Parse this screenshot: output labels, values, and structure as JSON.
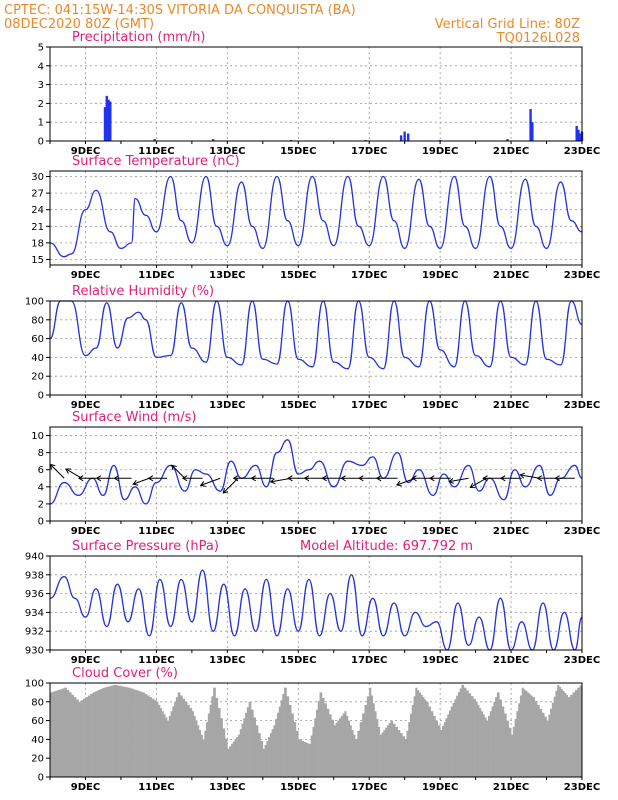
{
  "header": {
    "line1": "CPTEC:   041:15W-14:30S   VITORIA DA CONQUISTA (BA)",
    "line2": "08DEC2020 80Z (GMT)",
    "grid_note": "Vertical Grid Line: 80Z",
    "code": "TQ0126L028",
    "model_altitude_label": "Model Altitude: 697.792  m"
  },
  "colors": {
    "header": "#e8892b",
    "title": "#e0207a",
    "line": "#2233dd",
    "bar": "#2233ee",
    "cloud": "#a6a6a6"
  },
  "x_ticks": [
    "9DEC",
    "11DEC",
    "13DEC",
    "15DEC",
    "17DEC",
    "19DEC",
    "21DEC",
    "23DEC"
  ],
  "chart_data": [
    {
      "id": "precip",
      "type": "bar",
      "title": "Precipitation  (mm/h)",
      "ylim": [
        0,
        5
      ],
      "yticks": [
        0,
        1,
        2,
        3,
        4,
        5
      ],
      "x_day_start": 8.0,
      "x_day_end": 23.0,
      "x": [
        9.55,
        9.6,
        9.65,
        9.7,
        10.95,
        12.6,
        14.8,
        16.9,
        17.9,
        18.0,
        18.1,
        19.0,
        20.9,
        21.55,
        21.6,
        22.85,
        22.9,
        22.95,
        23.0
      ],
      "values": [
        1.8,
        2.4,
        2.2,
        2.1,
        0.1,
        0.1,
        0.05,
        0.05,
        0.3,
        0.5,
        0.4,
        0.05,
        0.1,
        1.7,
        1.0,
        0.8,
        0.6,
        0.4,
        0.5
      ]
    },
    {
      "id": "temp",
      "type": "line",
      "title": "Surface Temperature  (nC)",
      "ylim": [
        14,
        31
      ],
      "yticks": [
        15,
        18,
        21,
        24,
        27,
        30
      ],
      "x_day_start": 8.0,
      "x_day_end": 23.0,
      "x": [
        8.0,
        8.4,
        8.6,
        9.0,
        9.3,
        9.7,
        10.0,
        10.3,
        10.4,
        10.7,
        11.0,
        11.4,
        11.7,
        12.0,
        12.4,
        12.7,
        13.0,
        13.4,
        13.7,
        14.0,
        14.4,
        14.7,
        15.0,
        15.4,
        15.7,
        16.0,
        16.4,
        16.7,
        17.0,
        17.4,
        17.7,
        18.0,
        18.4,
        18.7,
        19.0,
        19.4,
        19.7,
        20.0,
        20.4,
        20.7,
        21.0,
        21.4,
        21.7,
        22.0,
        22.4,
        22.7,
        23.0
      ],
      "values": [
        18,
        15.5,
        16,
        24,
        27.5,
        20,
        17,
        18,
        26,
        23,
        20,
        30,
        22,
        18,
        30,
        21,
        17.5,
        29,
        21,
        17,
        30,
        22,
        17.5,
        30,
        22,
        17.5,
        30,
        21,
        17.5,
        30,
        22,
        17,
        29.5,
        21,
        17,
        30,
        21,
        17,
        30,
        21,
        17,
        29.5,
        21,
        17,
        29,
        22,
        20
      ]
    },
    {
      "id": "rh",
      "type": "line",
      "title": "Relative Humidity  (%)",
      "ylim": [
        0,
        100
      ],
      "yticks": [
        0,
        20,
        40,
        60,
        80,
        100
      ],
      "x_day_start": 8.0,
      "x_day_end": 23.0,
      "x": [
        8.0,
        8.3,
        8.6,
        9.0,
        9.3,
        9.6,
        9.9,
        10.2,
        10.5,
        10.7,
        11.0,
        11.4,
        11.7,
        12.0,
        12.4,
        12.7,
        13.0,
        13.4,
        13.7,
        14.0,
        14.4,
        14.7,
        15.0,
        15.4,
        15.7,
        16.0,
        16.4,
        16.7,
        17.0,
        17.4,
        17.7,
        18.0,
        18.4,
        18.7,
        19.0,
        19.4,
        19.7,
        20.0,
        20.4,
        20.7,
        21.0,
        21.4,
        21.7,
        22.0,
        22.4,
        22.7,
        23.0
      ],
      "values": [
        60,
        100,
        100,
        42,
        50,
        98,
        50,
        82,
        88,
        80,
        40,
        42,
        98,
        50,
        35,
        100,
        40,
        32,
        100,
        38,
        33,
        100,
        38,
        30,
        100,
        35,
        28,
        100,
        40,
        28,
        100,
        40,
        30,
        100,
        48,
        30,
        100,
        42,
        30,
        100,
        40,
        32,
        100,
        38,
        32,
        100,
        75
      ]
    },
    {
      "id": "wind",
      "type": "line",
      "title": "Surface Wind  (m/s)",
      "ylim": [
        0,
        11
      ],
      "yticks": [
        0,
        2,
        4,
        6,
        8,
        10
      ],
      "x_day_start": 8.0,
      "x_day_end": 23.0,
      "x": [
        8.0,
        8.4,
        8.8,
        9.2,
        9.5,
        9.8,
        10.1,
        10.4,
        10.7,
        11.0,
        11.4,
        11.8,
        12.1,
        12.4,
        12.8,
        13.1,
        13.4,
        13.8,
        14.1,
        14.4,
        14.7,
        15.0,
        15.3,
        15.6,
        16.0,
        16.4,
        16.8,
        17.1,
        17.4,
        17.8,
        18.1,
        18.4,
        18.8,
        19.1,
        19.4,
        19.8,
        20.1,
        20.4,
        20.8,
        21.1,
        21.4,
        21.8,
        22.1,
        22.4,
        22.8,
        23.0
      ],
      "values": [
        2,
        4.5,
        3,
        5,
        3,
        6.5,
        2.5,
        4,
        2,
        4.5,
        6.5,
        3.5,
        6,
        5.5,
        3.5,
        7,
        5,
        6.5,
        4,
        8,
        9.5,
        5.5,
        6,
        7,
        4,
        7,
        6.5,
        7.5,
        5,
        8,
        4.5,
        6,
        3,
        5.5,
        4,
        6.5,
        3.5,
        5,
        2.5,
        6,
        4,
        6.5,
        3,
        5,
        6.5,
        5
      ],
      "arrows_x": [
        8.4,
        8.9,
        9.3,
        9.8,
        10.3,
        10.8,
        11.3,
        11.8,
        12.3,
        12.8,
        13.3,
        13.8,
        14.3,
        14.8,
        15.3,
        15.8,
        16.3,
        16.8,
        17.3,
        17.8,
        18.3,
        18.8,
        19.3,
        19.8,
        20.3,
        20.8,
        21.3,
        21.8,
        22.3,
        22.8
      ],
      "arrows_deg": [
        135,
        150,
        180,
        180,
        180,
        200,
        180,
        135,
        180,
        200,
        225,
        180,
        180,
        190,
        180,
        180,
        180,
        180,
        180,
        180,
        200,
        180,
        180,
        190,
        210,
        180,
        180,
        170,
        180,
        180
      ],
      "arrows_mag": [
        0.8,
        0.7,
        0.6,
        0.6,
        0.6,
        0.6,
        0.7,
        0.7,
        0.8,
        0.9,
        0.9,
        1.0,
        1.0,
        0.9,
        0.9,
        1.0,
        1.0,
        0.9,
        0.9,
        0.9,
        0.8,
        0.9,
        0.9,
        0.8,
        0.7,
        0.9,
        0.9,
        0.8,
        0.8,
        0.8
      ]
    },
    {
      "id": "pres",
      "type": "line",
      "title": "Surface Pressure  (hPa)",
      "ylim": [
        930,
        940
      ],
      "yticks": [
        930,
        932,
        934,
        936,
        938,
        940
      ],
      "x_day_start": 8.0,
      "x_day_end": 23.0,
      "x": [
        8.0,
        8.4,
        8.7,
        9.0,
        9.3,
        9.6,
        9.9,
        10.2,
        10.5,
        10.8,
        11.1,
        11.4,
        11.7,
        12.0,
        12.3,
        12.6,
        12.9,
        13.2,
        13.5,
        13.8,
        14.1,
        14.4,
        14.7,
        15.0,
        15.3,
        15.6,
        15.9,
        16.2,
        16.5,
        16.8,
        17.1,
        17.4,
        17.7,
        18.0,
        18.3,
        18.6,
        18.9,
        19.2,
        19.5,
        19.8,
        20.1,
        20.4,
        20.7,
        21.0,
        21.3,
        21.6,
        21.9,
        22.2,
        22.5,
        22.8,
        23.0
      ],
      "values": [
        935.5,
        937.8,
        935.5,
        933.5,
        936.5,
        932.5,
        937,
        933,
        936.5,
        931.5,
        937.5,
        932.5,
        937.5,
        933,
        938.5,
        932,
        937,
        931.5,
        936.5,
        932,
        937.5,
        931.5,
        936.5,
        932,
        937.5,
        931.5,
        936,
        932,
        938,
        931.5,
        935.5,
        931.5,
        935,
        931.5,
        934,
        932.5,
        933,
        930,
        935,
        930.5,
        933.5,
        930,
        935.5,
        930,
        933,
        930,
        935,
        930,
        934,
        930,
        933.5
      ]
    },
    {
      "id": "cloud",
      "type": "area",
      "title": "Cloud Cover  (%)",
      "ylim": [
        0,
        100
      ],
      "yticks": [
        0,
        20,
        40,
        60,
        80,
        100
      ],
      "x_day_start": 8.0,
      "x_day_end": 23.0,
      "x": [
        8.0,
        8.4,
        8.8,
        9.2,
        9.5,
        9.8,
        10.2,
        10.6,
        11.0,
        11.3,
        11.6,
        12.0,
        12.3,
        12.6,
        13.0,
        13.3,
        13.6,
        14.0,
        14.3,
        14.6,
        15.0,
        15.3,
        15.6,
        16.0,
        16.3,
        16.6,
        17.0,
        17.3,
        17.6,
        18.0,
        18.3,
        18.6,
        19.0,
        19.3,
        19.6,
        20.0,
        20.3,
        20.6,
        21.0,
        21.3,
        21.6,
        22.0,
        22.3,
        22.6,
        23.0
      ],
      "values": [
        90,
        95,
        80,
        90,
        95,
        98,
        95,
        90,
        80,
        60,
        90,
        70,
        40,
        95,
        30,
        45,
        80,
        30,
        55,
        95,
        40,
        35,
        90,
        55,
        70,
        40,
        95,
        45,
        60,
        40,
        95,
        80,
        50,
        75,
        98,
        80,
        60,
        90,
        45,
        95,
        85,
        60,
        98,
        85,
        100
      ]
    }
  ],
  "chart_meta": {
    "precip": {
      "title": "Precipitation  (mm/h)"
    },
    "temp": {
      "title": "Surface Temperature  (nC)"
    },
    "rh": {
      "title": "Relative Humidity  (%)"
    },
    "wind": {
      "title": "Surface Wind  (m/s)"
    },
    "pres": {
      "title": "Surface Pressure  (hPa)"
    },
    "cloud": {
      "title": "Cloud Cover  (%)"
    }
  }
}
